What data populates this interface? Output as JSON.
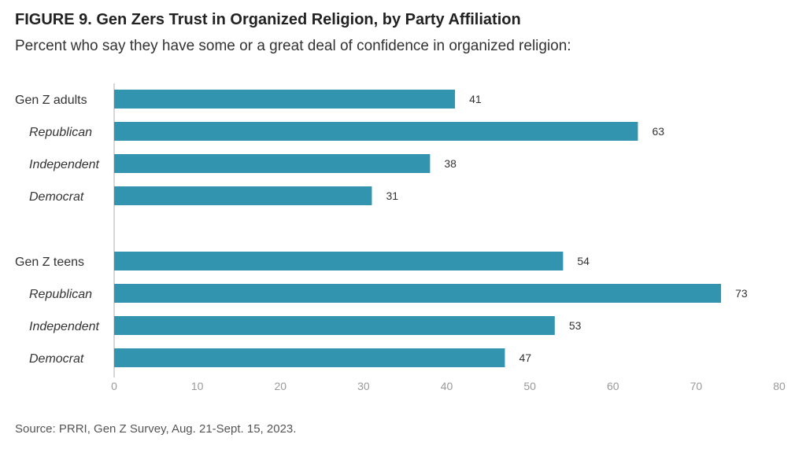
{
  "header": {
    "title": "FIGURE 9. Gen Zers Trust in Organized Religion, by Party Affiliation",
    "subtitle": "Percent who say they have some or a great deal of confidence in organized religion:"
  },
  "footer": {
    "source": "Source: PRRI, Gen Z Survey, Aug. 21-Sept. 15, 2023."
  },
  "colors": {
    "bar": "#3394b0",
    "axis": "#cccccc"
  },
  "chart_data": {
    "type": "bar",
    "orientation": "horizontal",
    "title": "FIGURE 9. Gen Zers Trust in Organized Religion, by Party Affiliation",
    "subtitle": "Percent who say they have some or a great deal of confidence in organized religion:",
    "xlabel": "",
    "ylabel": "",
    "xlim": [
      0,
      80
    ],
    "ticks": [
      0,
      10,
      20,
      30,
      40,
      50,
      60,
      70,
      80
    ],
    "grid": false,
    "legend": "none",
    "groups": [
      {
        "rows": [
          {
            "label": "Gen Z adults",
            "value": 41,
            "subgroup": false
          },
          {
            "label": "Republican",
            "value": 63,
            "subgroup": true
          },
          {
            "label": "Independent",
            "value": 38,
            "subgroup": true
          },
          {
            "label": "Democrat",
            "value": 31,
            "subgroup": true
          }
        ]
      },
      {
        "rows": [
          {
            "label": "Gen Z teens",
            "value": 54,
            "subgroup": false
          },
          {
            "label": "Republican",
            "value": 73,
            "subgroup": true
          },
          {
            "label": "Independent",
            "value": 53,
            "subgroup": true
          },
          {
            "label": "Democrat",
            "value": 47,
            "subgroup": true
          }
        ]
      }
    ]
  }
}
